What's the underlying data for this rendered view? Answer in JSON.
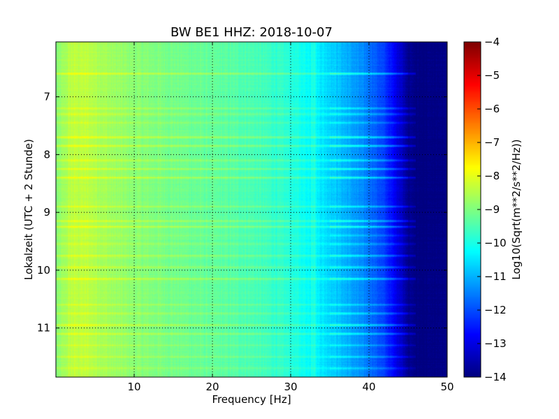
{
  "chart_data": {
    "type": "heatmap",
    "title": "BW BE1 HHZ: 2018-10-07",
    "xlabel": "Frequency [Hz]",
    "ylabel": "Lokalzeit (UTC + 2 Stunde)",
    "xlim": [
      0,
      50
    ],
    "ylim": [
      6.05,
      11.85
    ],
    "y_inverted": true,
    "x_ticks": [
      10,
      20,
      30,
      40,
      50
    ],
    "y_ticks": [
      7,
      8,
      9,
      10,
      11
    ],
    "grid": true,
    "colormap": "jet",
    "colorbar": {
      "label": "Log10(Sqrt(m**2/s**2/Hz))",
      "range": [
        -14,
        -4
      ],
      "ticks": [
        -4,
        -5,
        -6,
        -7,
        -8,
        -9,
        -10,
        -11,
        -12,
        -13,
        -14
      ]
    },
    "level_profile": {
      "frequency": [
        0,
        2,
        4,
        7,
        10,
        15,
        20,
        25,
        30,
        33,
        36,
        38,
        40,
        42,
        44,
        45,
        46,
        50
      ],
      "log10_amplitude": [
        -9.0,
        -8.4,
        -8.4,
        -8.7,
        -8.9,
        -9.1,
        -9.3,
        -9.5,
        -9.9,
        -10.3,
        -10.8,
        -11.2,
        -11.6,
        -12.2,
        -13.2,
        -13.8,
        -14.0,
        -14.0
      ]
    },
    "noisy_bands": [
      {
        "time": 6.6,
        "strength": 1.0
      },
      {
        "time": 7.2,
        "strength": 0.7
      },
      {
        "time": 7.3,
        "strength": 0.6
      },
      {
        "time": 7.45,
        "strength": 0.5
      },
      {
        "time": 7.7,
        "strength": 1.0
      },
      {
        "time": 7.85,
        "strength": 1.0
      },
      {
        "time": 8.1,
        "strength": 0.8
      },
      {
        "time": 8.25,
        "strength": 0.9
      },
      {
        "time": 8.4,
        "strength": 1.0
      },
      {
        "time": 8.9,
        "strength": 0.8
      },
      {
        "time": 9.15,
        "strength": 0.9
      },
      {
        "time": 9.25,
        "strength": 1.0
      },
      {
        "time": 9.4,
        "strength": 0.5
      },
      {
        "time": 9.55,
        "strength": 0.5
      },
      {
        "time": 9.75,
        "strength": 0.8
      },
      {
        "time": 9.95,
        "strength": 0.7
      },
      {
        "time": 10.15,
        "strength": 0.9
      },
      {
        "time": 10.6,
        "strength": 0.5
      },
      {
        "time": 10.75,
        "strength": 0.8
      },
      {
        "time": 10.95,
        "strength": 0.9
      },
      {
        "time": 11.1,
        "strength": 0.8
      },
      {
        "time": 11.3,
        "strength": 0.5
      },
      {
        "time": 11.5,
        "strength": 0.6
      },
      {
        "time": 11.7,
        "strength": 0.5
      }
    ]
  }
}
